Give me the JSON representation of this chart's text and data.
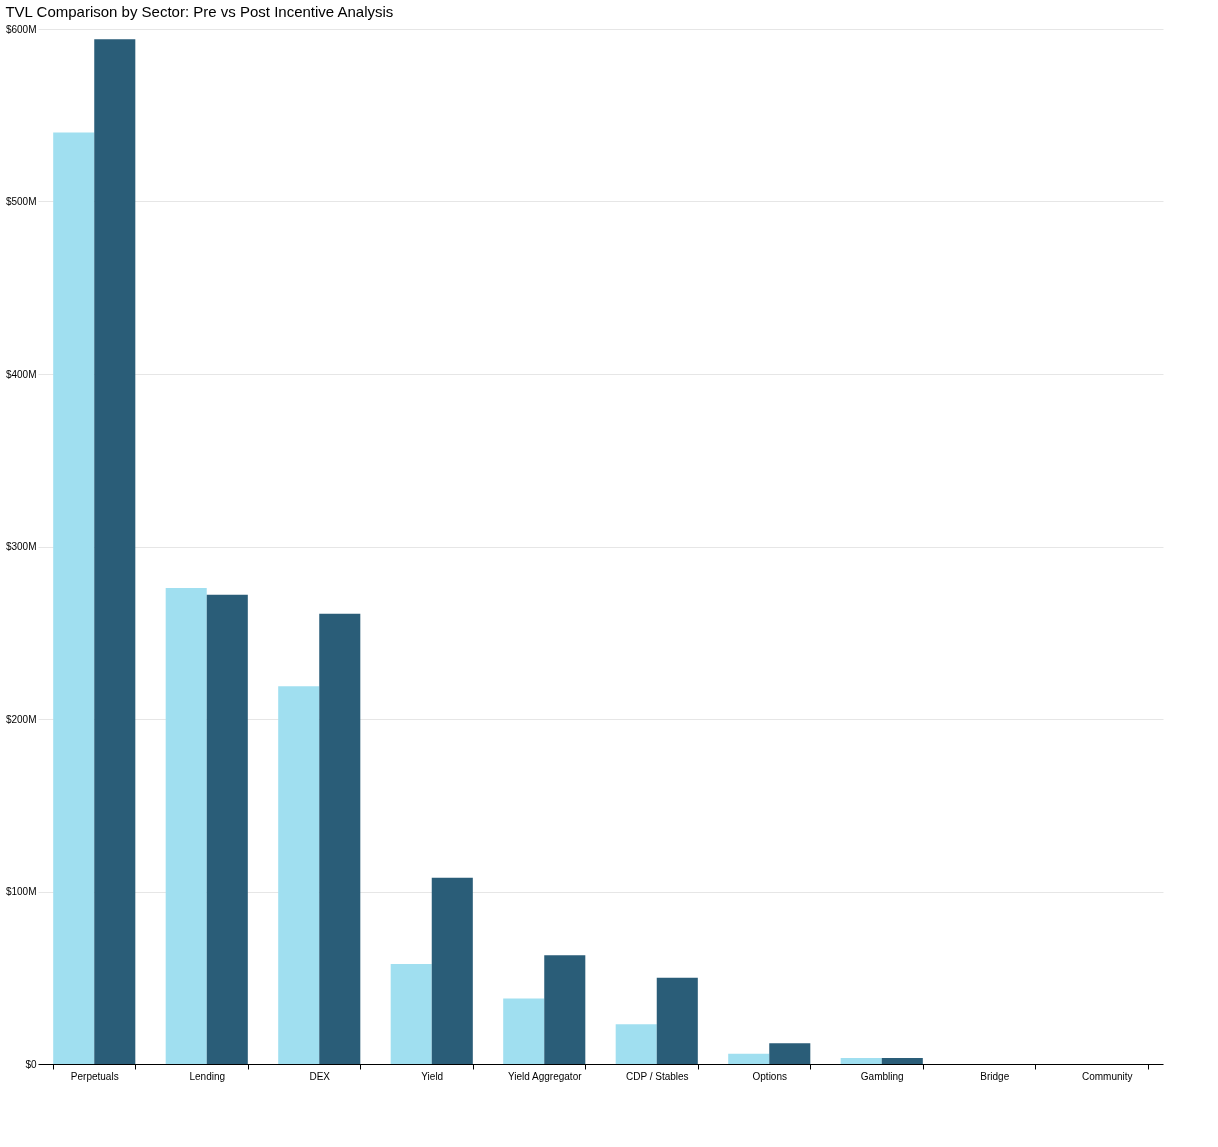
{
  "chart_data": {
    "type": "bar",
    "title": "TVL Comparison by Sector: Pre vs Post Incentive Analysis",
    "categories": [
      "Perpetuals",
      "Lending",
      "DEX",
      "Yield",
      "Yield Aggregator",
      "CDP / Stables",
      "Options",
      "Gambling",
      "Bridge",
      "Community"
    ],
    "series": [
      {
        "color": "#a0dff0",
        "values": [
          540,
          276,
          219,
          58,
          38,
          23,
          6,
          3.5,
          0,
          0
        ]
      },
      {
        "color": "#2a5d78",
        "values": [
          594,
          272,
          261,
          108,
          63,
          50,
          12,
          3.5,
          0,
          0
        ]
      }
    ],
    "ylim": [
      0,
      600
    ],
    "yticks": [
      {
        "value": 0,
        "label": "$0"
      },
      {
        "value": 100,
        "label": "$100M"
      },
      {
        "value": 200,
        "label": "$200M"
      },
      {
        "value": 300,
        "label": "$300M"
      },
      {
        "value": 400,
        "label": "$400M"
      },
      {
        "value": 500,
        "label": "$500M"
      },
      {
        "value": 600,
        "label": "$600M"
      }
    ],
    "grid": "y",
    "legend": false
  }
}
